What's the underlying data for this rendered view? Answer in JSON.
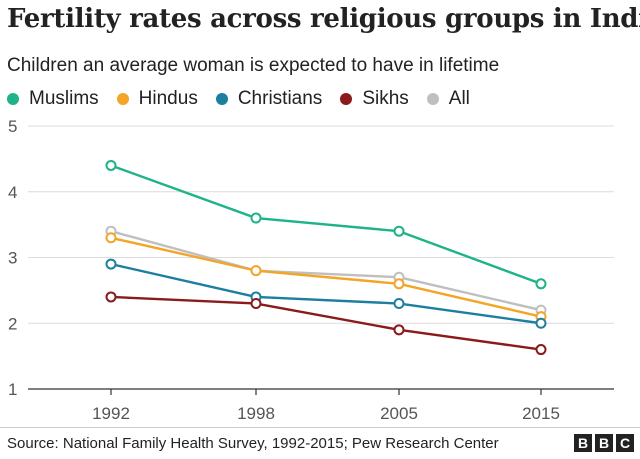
{
  "title": "Fertility rates across religious groups in India",
  "subtitle": "Children an average woman is expected to have in lifetime",
  "source": "Source: National Family Health Survey, 1992-2015; Pew Research Center",
  "logo": {
    "letters": [
      "B",
      "B",
      "C"
    ]
  },
  "chart_data": {
    "type": "line",
    "title": "Fertility rates across religious groups in India",
    "subtitle": "Children an average woman is expected to have in lifetime",
    "xlabel": "",
    "ylabel": "",
    "categories": [
      "1992",
      "1998",
      "2005",
      "2015"
    ],
    "ylim": [
      1,
      5
    ],
    "yticks": [
      "1",
      "2",
      "3",
      "4",
      "5"
    ],
    "grid": true,
    "legend_position": "top",
    "series": [
      {
        "name": "Muslims",
        "color": "#1fb38a",
        "values": [
          4.4,
          3.6,
          3.4,
          2.6
        ]
      },
      {
        "name": "Hindus",
        "color": "#f2a527",
        "values": [
          3.3,
          2.8,
          2.6,
          2.1
        ]
      },
      {
        "name": "Christians",
        "color": "#1d7fa0",
        "values": [
          2.9,
          2.4,
          2.3,
          2.0
        ]
      },
      {
        "name": "Sikhs",
        "color": "#8b1a1a",
        "values": [
          2.4,
          2.3,
          1.9,
          1.6
        ]
      },
      {
        "name": "All",
        "color": "#bfbfbf",
        "values": [
          3.4,
          2.8,
          2.7,
          2.2
        ]
      }
    ]
  }
}
